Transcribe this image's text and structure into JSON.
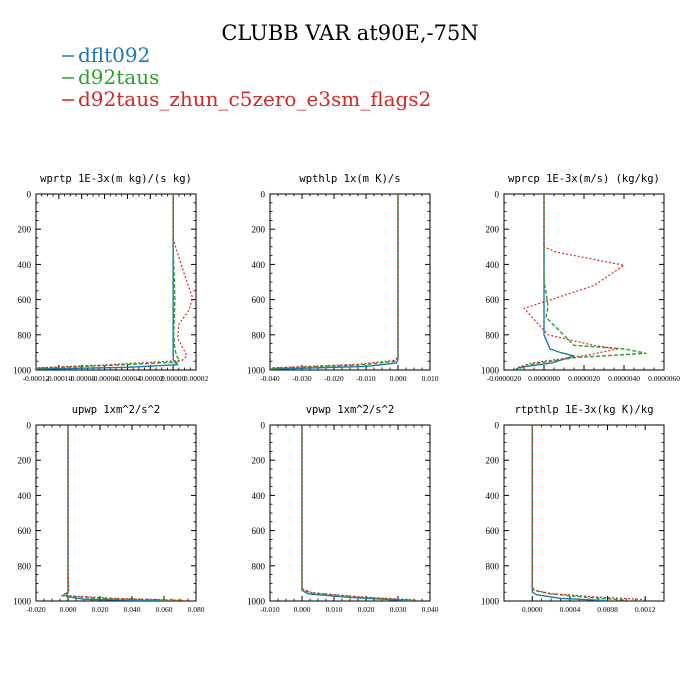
{
  "figure": {
    "title": "CLUBB VAR at90E,-75N",
    "legend": [
      {
        "label": "dflt092",
        "color": "#1f77b4"
      },
      {
        "label": "d92taus",
        "color": "#2ca02c"
      },
      {
        "label": "d92taus_zhun_c5zero_e3sm_flags2",
        "color": "#d62728"
      }
    ]
  },
  "chart_data": [
    {
      "type": "line",
      "title": "wprtp  1E-3x(m kg)/(s kg)",
      "ylim": [
        1000,
        0
      ],
      "yticks": [
        "0",
        "200",
        "400",
        "600",
        "800",
        "1000"
      ],
      "xlim": [
        -0.00012,
        2e-05
      ],
      "xticks": [
        "-0.00012",
        "-0.00010",
        "-0.00008",
        "-0.00006",
        "-0.00004",
        "-0.00002",
        "0.00000",
        "0.00002"
      ],
      "series": [
        {
          "name": "dflt092",
          "x": [
            0.0,
            0.0,
            0.0,
            0.0,
            0.0,
            0.0,
            0.0,
            0.0,
            0.0,
            2e-06,
            4e-06,
            -4e-05,
            -0.00012
          ],
          "y": [
            0,
            100,
            300,
            500,
            600,
            700,
            800,
            900,
            940,
            960,
            970,
            985,
            995
          ]
        },
        {
          "name": "d92taus",
          "x": [
            0.0,
            0.0,
            0.0,
            1e-06,
            1.5e-06,
            1e-06,
            5e-07,
            1.5e-06,
            3e-06,
            5e-06,
            4e-06,
            -6e-05,
            -0.00012
          ],
          "y": [
            0,
            100,
            300,
            500,
            600,
            700,
            800,
            880,
            920,
            940,
            955,
            975,
            990
          ]
        },
        {
          "name": "d92taus_zhun_c5zero_e3sm_flags2",
          "x": [
            0.0,
            0.0,
            3e-06,
            9e-06,
            1.7e-05,
            1.4e-05,
            5e-06,
            4e-06,
            9e-06,
            1.2e-05,
            8e-06,
            -5.5e-05,
            -0.00012
          ],
          "y": [
            0,
            250,
            320,
            440,
            590,
            660,
            740,
            820,
            880,
            920,
            945,
            970,
            988
          ]
        }
      ]
    },
    {
      "type": "line",
      "title": "wpthlp  1x(m K)/s",
      "ylim": [
        1000,
        0
      ],
      "yticks": [
        "0",
        "200",
        "400",
        "600",
        "800",
        "1000"
      ],
      "xlim": [
        -0.04,
        0.01
      ],
      "xticks": [
        "-0.040",
        "-0.030",
        "-0.020",
        "-0.010",
        "0.000",
        "0.010"
      ],
      "series": [
        {
          "name": "dflt092",
          "x": [
            0.0,
            0.0,
            0.0,
            0.0,
            0.0,
            -0.0005,
            -0.01,
            -0.04
          ],
          "y": [
            0,
            300,
            600,
            800,
            940,
            960,
            980,
            995
          ]
        },
        {
          "name": "d92taus",
          "x": [
            0.0,
            0.0,
            0.0,
            0.0,
            0.0,
            -0.0008,
            -0.012,
            -0.04
          ],
          "y": [
            0,
            300,
            600,
            800,
            930,
            950,
            972,
            990
          ]
        },
        {
          "name": "d92taus_zhun_c5zero_e3sm_flags2",
          "x": [
            0.0,
            0.0,
            0.0,
            0.0,
            0.0,
            -0.001,
            -0.013,
            -0.04
          ],
          "y": [
            0,
            300,
            600,
            800,
            925,
            945,
            968,
            988
          ]
        }
      ]
    },
    {
      "type": "line",
      "title": "wprcp  1E-3x(m/s) (kg/kg)",
      "ylim": [
        1000,
        0
      ],
      "yticks": [
        "0",
        "200",
        "400",
        "600",
        "800",
        "1000"
      ],
      "xlim": [
        -2e-06,
        6e-06
      ],
      "xticks": [
        "-0.0000020",
        "0.0000000",
        "0.0000020",
        "0.0000040",
        "0.0000060"
      ],
      "series": [
        {
          "name": "dflt092",
          "x": [
            0.0,
            0.0,
            0.0,
            0.0,
            0.0,
            3e-07,
            8e-07,
            1.5e-06,
            4e-07,
            -1.2e-06,
            -1.4e-06
          ],
          "y": [
            0,
            300,
            500,
            650,
            800,
            880,
            900,
            920,
            960,
            985,
            995
          ]
        },
        {
          "name": "d92taus",
          "x": [
            0.0,
            0.0,
            0.0,
            1e-07,
            2e-07,
            1e-07,
            1.5e-06,
            4e-06,
            5.1e-06,
            1.5e-06,
            -5e-07,
            -1.2e-06
          ],
          "y": [
            0,
            300,
            500,
            560,
            640,
            700,
            860,
            880,
            905,
            930,
            965,
            990
          ]
        },
        {
          "name": "d92taus_zhun_c5zero_e3sm_flags2",
          "x": [
            0.0,
            0.0,
            6e-07,
            2e-06,
            4e-06,
            2.5e-06,
            -1e-06,
            2e-07,
            2.5e-06,
            3.7e-06,
            2.2e-06,
            -6e-07,
            -1.3e-06
          ],
          "y": [
            0,
            300,
            330,
            360,
            405,
            520,
            650,
            800,
            860,
            880,
            915,
            960,
            985
          ]
        }
      ]
    },
    {
      "type": "line",
      "title": "upwp  1xm^2/s^2",
      "ylim": [
        1000,
        0
      ],
      "yticks": [
        "0",
        "200",
        "400",
        "600",
        "800",
        "1000"
      ],
      "xlim": [
        -0.02,
        0.08
      ],
      "xticks": [
        "-0.020",
        "0.000",
        "0.020",
        "0.040",
        "0.060",
        "0.080"
      ],
      "series": [
        {
          "name": "dflt092",
          "x": [
            0.0,
            0.0,
            0.0,
            0.0,
            -0.001,
            0.01,
            0.06
          ],
          "y": [
            0,
            400,
            800,
            950,
            975,
            990,
            1000
          ]
        },
        {
          "name": "d92taus",
          "x": [
            0.0,
            0.0,
            0.0,
            0.0,
            -0.004,
            0.02,
            0.07
          ],
          "y": [
            0,
            400,
            800,
            950,
            970,
            985,
            998
          ]
        },
        {
          "name": "d92taus_zhun_c5zero_e3sm_flags2",
          "x": [
            0.0,
            0.0,
            0.0,
            0.0005,
            -0.003,
            0.03,
            0.072
          ],
          "y": [
            0,
            400,
            800,
            950,
            968,
            985,
            996
          ]
        }
      ]
    },
    {
      "type": "line",
      "title": "vpwp  1xm^2/s^2",
      "ylim": [
        1000,
        0
      ],
      "yticks": [
        "0",
        "200",
        "400",
        "600",
        "800",
        "1000"
      ],
      "xlim": [
        -0.01,
        0.04
      ],
      "xticks": [
        "-0.010",
        "0.000",
        "0.010",
        "0.020",
        "0.030",
        "0.040"
      ],
      "series": [
        {
          "name": "dflt092",
          "x": [
            0.0,
            0.0,
            0.0,
            0.0,
            0.002,
            0.015,
            0.034
          ],
          "y": [
            0,
            400,
            800,
            940,
            960,
            980,
            998
          ]
        },
        {
          "name": "d92taus",
          "x": [
            0.0,
            0.0,
            0.0,
            0.0,
            0.003,
            0.017,
            0.035
          ],
          "y": [
            0,
            400,
            800,
            935,
            955,
            978,
            996
          ]
        },
        {
          "name": "d92taus_zhun_c5zero_e3sm_flags2",
          "x": [
            0.0,
            0.0,
            0.0,
            0.0,
            0.003,
            0.018,
            0.036
          ],
          "y": [
            0,
            400,
            800,
            930,
            952,
            976,
            995
          ]
        }
      ]
    },
    {
      "type": "line",
      "title": "rtpthlp  1E-3x(kg K)/kg",
      "ylim": [
        1000,
        0
      ],
      "yticks": [
        "0",
        "200",
        "400",
        "600",
        "800",
        "1000"
      ],
      "xlim": [
        -0.0003,
        0.0014
      ],
      "xticks": [
        "0.0000",
        "0.0004",
        "0.0008",
        "0.0012"
      ],
      "series": [
        {
          "name": "dflt092",
          "x": [
            0.0,
            0.0,
            0.0,
            0.0,
            0.0,
            5e-05,
            0.0003,
            0.0008
          ],
          "y": [
            0,
            400,
            800,
            920,
            950,
            965,
            985,
            998
          ]
        },
        {
          "name": "d92taus",
          "x": [
            0.0,
            0.0,
            0.0,
            0.0,
            2e-05,
            0.0002,
            0.0006,
            0.001
          ],
          "y": [
            0,
            400,
            800,
            920,
            940,
            960,
            980,
            995
          ]
        },
        {
          "name": "d92taus_zhun_c5zero_e3sm_flags2",
          "x": [
            0.0,
            0.0,
            0.0,
            0.0,
            2e-05,
            0.0002,
            0.0007,
            0.0012
          ],
          "y": [
            0,
            400,
            800,
            920,
            938,
            958,
            978,
            992
          ]
        }
      ]
    }
  ]
}
